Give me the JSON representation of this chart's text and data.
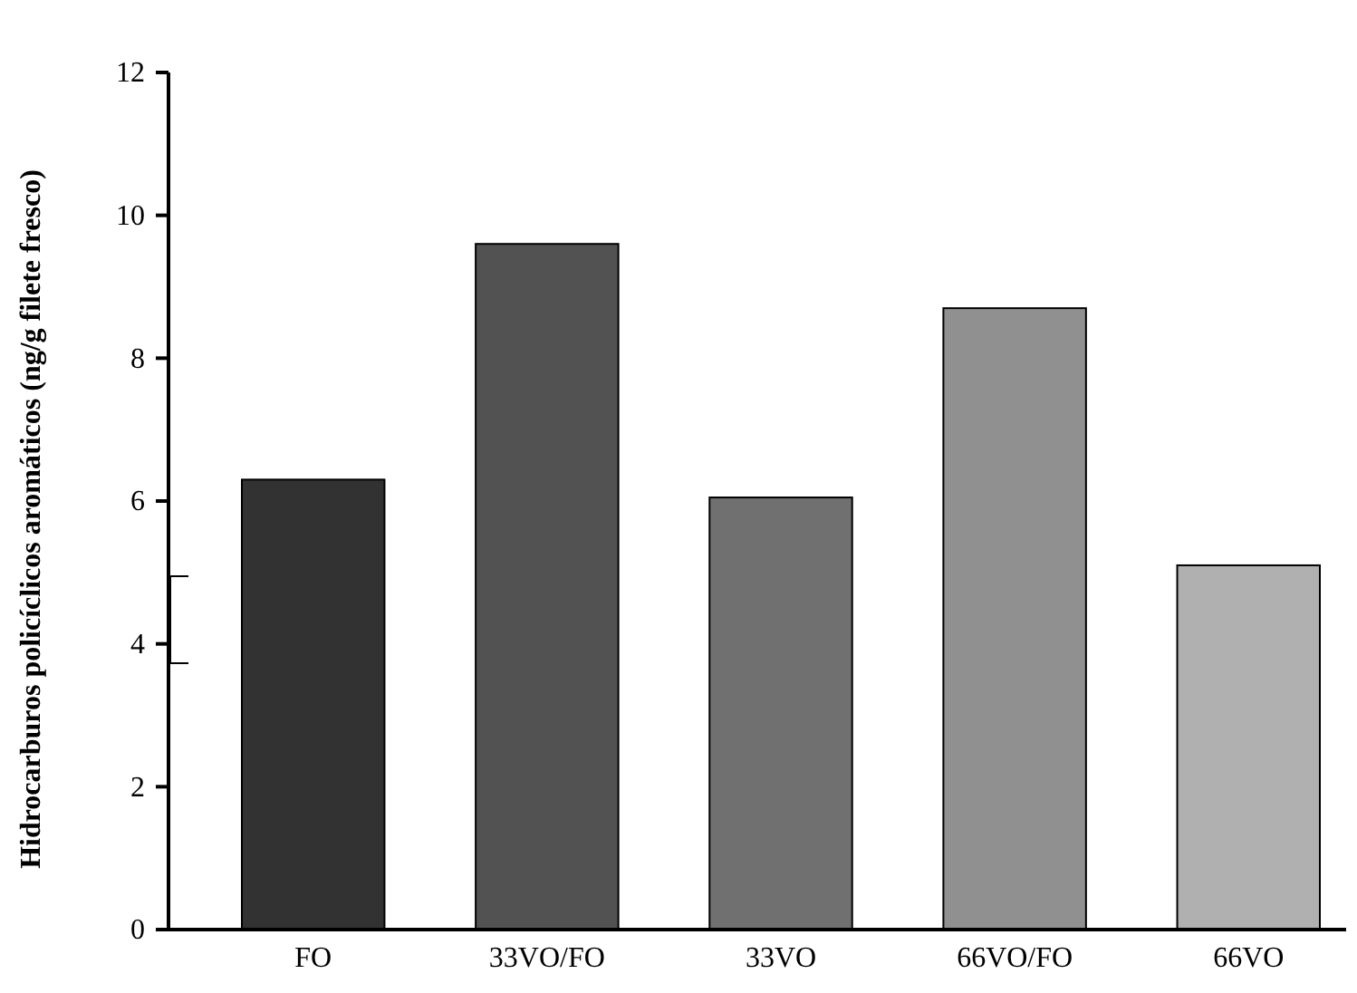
{
  "chart_data": {
    "type": "bar",
    "ylabel": "Hidrocarburos policíclicos aromáticos (ng/g filete fresco)",
    "categories": [
      "FO",
      "33VO/FO",
      "33VO",
      "66VO/FO",
      "66VO"
    ],
    "values": [
      6.3,
      9.6,
      6.05,
      8.7,
      5.1
    ],
    "colors": [
      "#323232",
      "#525252",
      "#707070",
      "#909090",
      "#b0b0b0"
    ],
    "ylim": [
      0,
      12
    ],
    "yticks": [
      0,
      2,
      4,
      6,
      8,
      10,
      12
    ],
    "grid": false
  }
}
